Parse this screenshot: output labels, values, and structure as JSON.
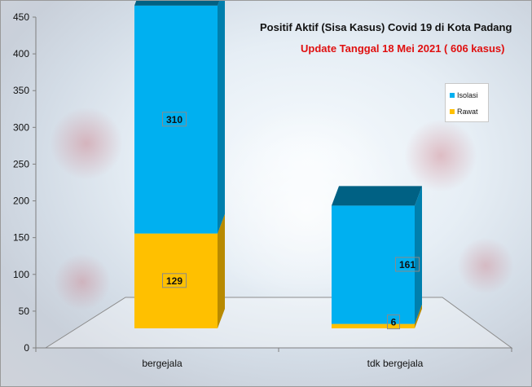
{
  "chart_data": {
    "type": "bar",
    "stacked": true,
    "three_d": true,
    "title": "Positif Aktif  (Sisa Kasus) Covid 19 di Kota Padang",
    "subtitle": "Update Tanggal 18 Mei 2021  ( 606  kasus)",
    "categories": [
      "bergejala",
      "tdk bergejala"
    ],
    "series": [
      {
        "name": "Rawat",
        "values": [
          129,
          6
        ],
        "color": "#ffc000"
      },
      {
        "name": "Isolasi",
        "values": [
          310,
          161
        ],
        "color": "#00b0f0"
      }
    ],
    "ylim": [
      0,
      450
    ],
    "yticks": [
      0,
      50,
      100,
      150,
      200,
      250,
      300,
      350,
      400,
      450
    ],
    "legend_position": "right",
    "grid": false
  }
}
